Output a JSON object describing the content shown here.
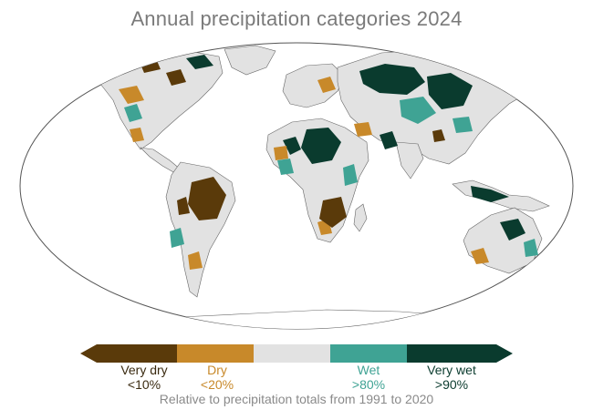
{
  "title": "Annual precipitation categories 2024",
  "legend": {
    "categories": [
      {
        "label": "Very dry",
        "threshold": "<10%",
        "color": "#5a3a0a"
      },
      {
        "label": "Dry",
        "threshold": "<20%",
        "color": "#c8892a"
      },
      {
        "label": "",
        "threshold": "",
        "color": "#e2e2e2"
      },
      {
        "label": "Wet",
        "threshold": ">80%",
        "color": "#3fa394"
      },
      {
        "label": "Very wet",
        "threshold": ">90%",
        "color": "#0a3b2e"
      }
    ]
  },
  "note": "Relative to precipitation totals from 1991 to 2020"
}
